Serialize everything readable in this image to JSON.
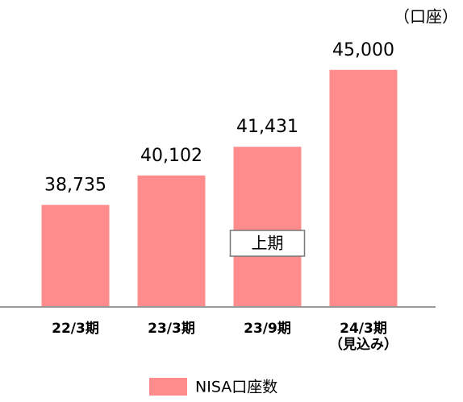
{
  "chart_data": {
    "type": "bar",
    "unit_label": "（口座）",
    "categories": [
      "22/3期",
      "23/3期",
      "23/9期",
      "24/3期\n（見込み）"
    ],
    "series": [
      {
        "name": "NISA口座数",
        "color": "#ff8c8c",
        "values": [
          38735,
          40102,
          41431,
          45000
        ],
        "value_labels": [
          "38,735",
          "40,102",
          "41,431",
          "45,000"
        ]
      }
    ],
    "annotations": [
      {
        "text": "上期",
        "category": 2
      }
    ],
    "ylim": [
      34000,
      46000
    ],
    "legend": "bottom"
  }
}
